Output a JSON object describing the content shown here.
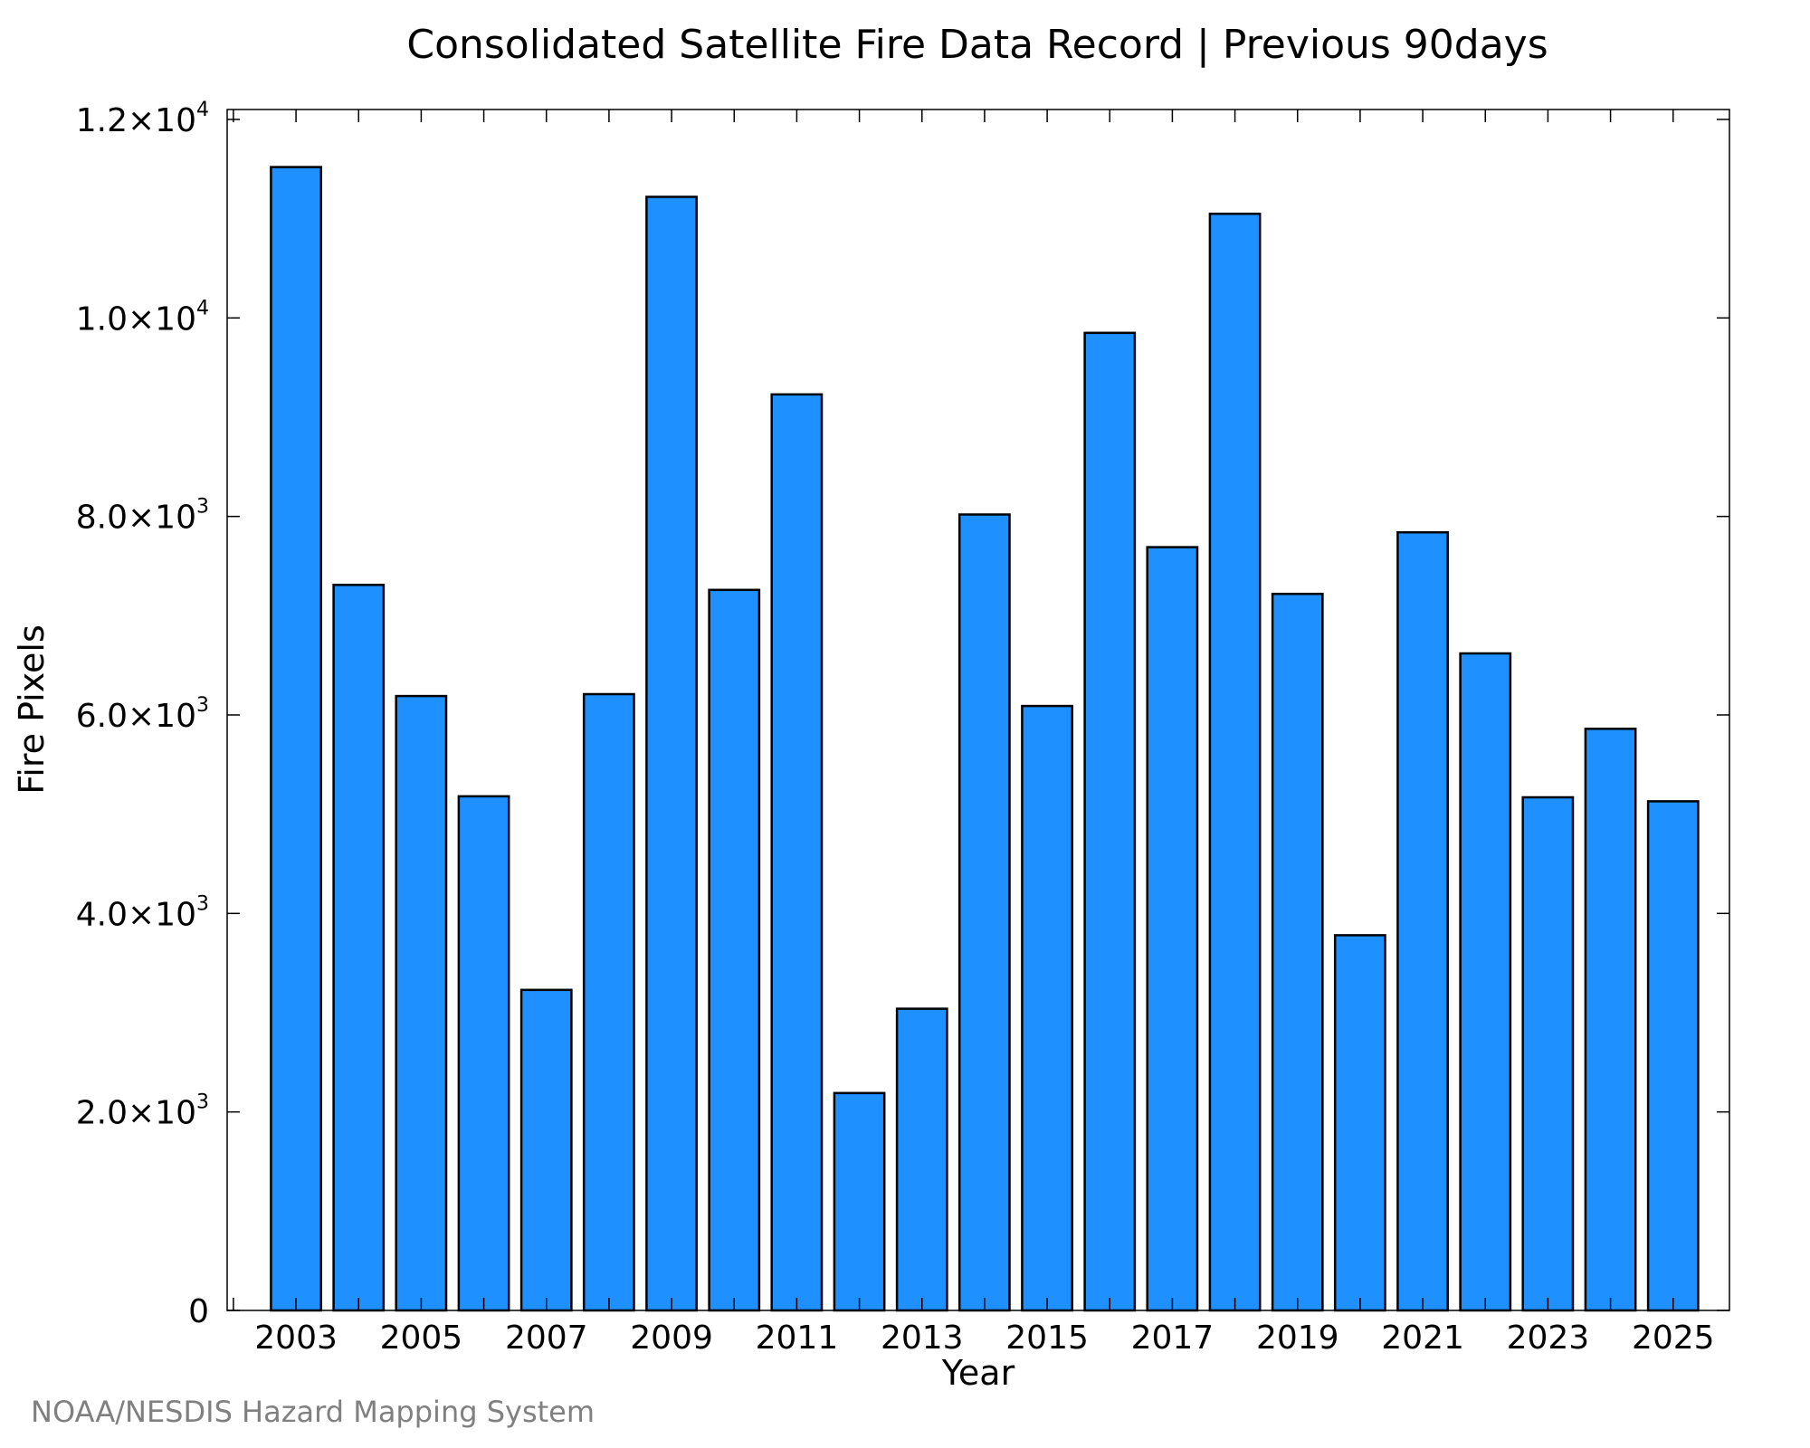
{
  "chart_data": {
    "type": "bar",
    "title": "Consolidated Satellite Fire Data Record | Previous 90days",
    "xlabel": "Year",
    "ylabel": "Fire Pixels",
    "categories": [
      "2003",
      "2004",
      "2005",
      "2006",
      "2007",
      "2008",
      "2009",
      "2010",
      "2011",
      "2012",
      "2013",
      "2014",
      "2015",
      "2016",
      "2017",
      "2018",
      "2019",
      "2020",
      "2021",
      "2022",
      "2023",
      "2024",
      "2025"
    ],
    "values": [
      11520,
      7310,
      6190,
      5180,
      3230,
      6210,
      11220,
      7260,
      9230,
      2190,
      3040,
      8020,
      6090,
      9850,
      7690,
      11050,
      7220,
      3780,
      7840,
      6620,
      5170,
      5860,
      5130
    ],
    "x_tick_labels": [
      "2003",
      "2005",
      "2007",
      "2009",
      "2011",
      "2013",
      "2015",
      "2017",
      "2019",
      "2021",
      "2023",
      "2025"
    ],
    "y_ticks": [
      {
        "value": 0,
        "mantissa": "0",
        "exp": ""
      },
      {
        "value": 2000,
        "mantissa": "2.0×10",
        "exp": "3"
      },
      {
        "value": 4000,
        "mantissa": "4.0×10",
        "exp": "3"
      },
      {
        "value": 6000,
        "mantissa": "6.0×10",
        "exp": "3"
      },
      {
        "value": 8000,
        "mantissa": "8.0×10",
        "exp": "3"
      },
      {
        "value": 10000,
        "mantissa": "1.0×10",
        "exp": "4"
      },
      {
        "value": 12000,
        "mantissa": "1.2×10",
        "exp": "4"
      }
    ],
    "ylim": [
      0,
      12100
    ],
    "xlim": [
      2001.9,
      2025.9
    ],
    "grid": false,
    "bar_color": "#1E90FF",
    "bar_edge_color": "#000000"
  },
  "footer": {
    "credit": "NOAA/NESDIS Hazard Mapping System",
    "credit_color": "#808080"
  }
}
